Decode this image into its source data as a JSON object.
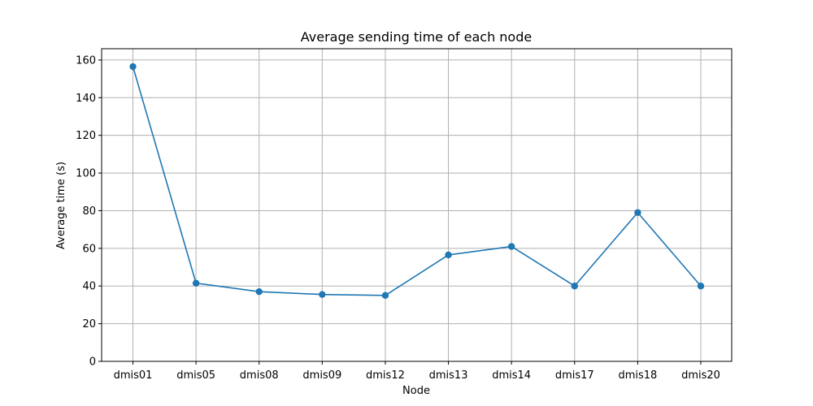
{
  "chart_data": {
    "type": "line",
    "title": "Average sending time of each node",
    "xlabel": "Node",
    "ylabel": "Average time (s)",
    "categories": [
      "dmis01",
      "dmis05",
      "dmis08",
      "dmis09",
      "dmis12",
      "dmis13",
      "dmis14",
      "dmis17",
      "dmis18",
      "dmis20"
    ],
    "series": [
      {
        "values": [
          156.5,
          41.5,
          37.0,
          35.5,
          35.0,
          56.5,
          61.0,
          40.0,
          79.0,
          40.0
        ],
        "color": "#1f77b4",
        "markers": true
      }
    ],
    "ylim": [
      0,
      166
    ],
    "yticks": [
      0,
      20,
      40,
      60,
      80,
      100,
      120,
      140,
      160
    ],
    "grid": true,
    "legend": "none"
  }
}
